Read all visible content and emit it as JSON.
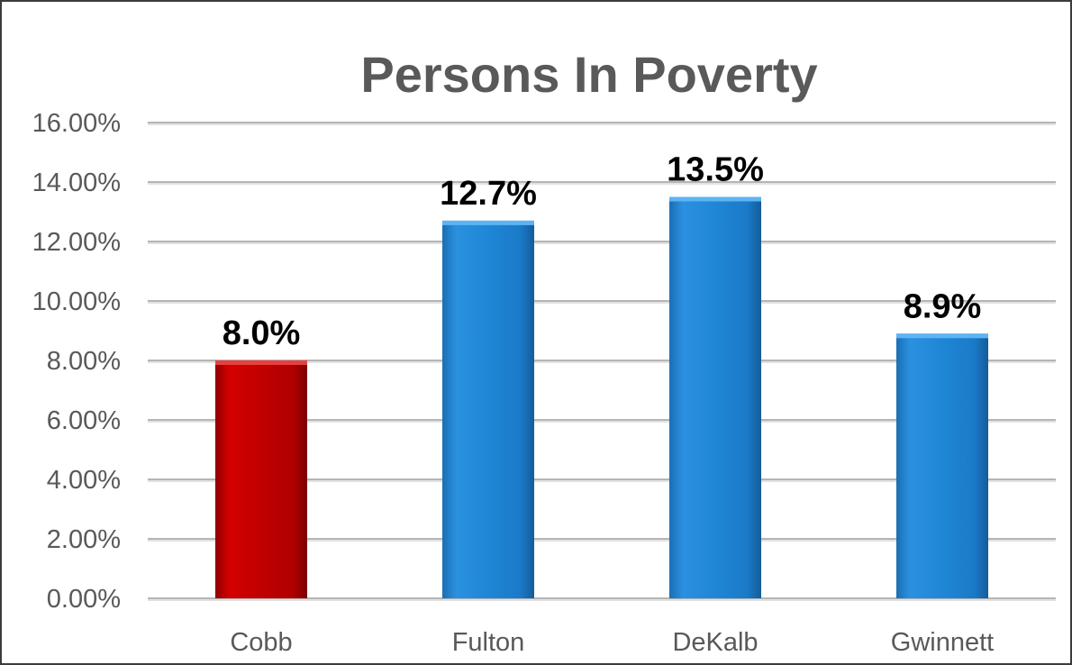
{
  "chart_data": {
    "type": "bar",
    "title": "Persons In Poverty",
    "xlabel": "",
    "ylabel": "",
    "categories": [
      "Cobb",
      "Fulton",
      "DeKalb",
      "Gwinnett"
    ],
    "values": [
      8.0,
      12.7,
      13.5,
      8.9
    ],
    "data_labels": [
      "8.0%",
      "12.7%",
      "13.5%",
      "8.9%"
    ],
    "ylim": [
      0,
      16
    ],
    "y_ticks": [
      0,
      2,
      4,
      6,
      8,
      10,
      12,
      14,
      16
    ],
    "y_tick_labels": [
      "0.00%",
      "2.00%",
      "4.00%",
      "6.00%",
      "8.00%",
      "10.00%",
      "12.00%",
      "14.00%",
      "16.00%"
    ],
    "grid": true,
    "legend": "none",
    "colors": {
      "highlight": "#c00000",
      "default": "#1f86d6",
      "gridline": "#b5b5b5",
      "text": "#595959"
    },
    "bar_colors": [
      "highlight",
      "default",
      "default",
      "default"
    ]
  }
}
